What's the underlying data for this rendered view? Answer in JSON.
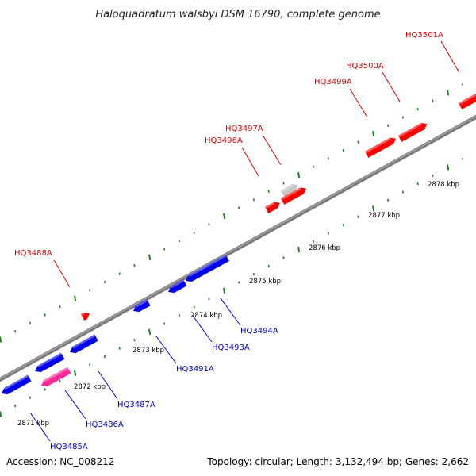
{
  "title": "Haloquadratum walsbyi DSM 16790, complete genome",
  "footer": {
    "accession": "Accession: NC_008212",
    "summary": "Topology: circular; Length: 3,132,494 bp; Genes: 2,662"
  },
  "colors": {
    "forward_gene": "#ff0000",
    "reverse_gene": "#0000ee",
    "highlight_gene": "#ff2a9a",
    "other_gene": "#c8c8c8",
    "forward_label": "#dd0000",
    "reverse_label": "#0000cc",
    "tick": "#208020",
    "backbone": "#7a7a7a"
  },
  "scale_labels": [
    "2871 kbp",
    "2872 kbp",
    "2873 kbp",
    "2874 kbp",
    "2875 kbp",
    "2876 kbp",
    "2877 kbp",
    "2878 kbp"
  ],
  "forward_genes": [
    {
      "label": "HQ3488A",
      "color": "#ff0000"
    },
    {
      "label": "HQ3496A",
      "color": "#ff0000"
    },
    {
      "label": "HQ3497A",
      "color": "#c8c8c8"
    },
    {
      "label": "HQ3499A",
      "color": "#ff0000"
    },
    {
      "label": "HQ3500A",
      "color": "#ff0000"
    },
    {
      "label": "HQ3501A",
      "color": "#ff0000"
    }
  ],
  "reverse_genes": [
    {
      "label": "HQ3485A",
      "color": "#0000ee"
    },
    {
      "label": "HQ3486A",
      "color": "#ff2a9a"
    },
    {
      "label": "HQ3487A",
      "color": "#0000ee"
    },
    {
      "label": "HQ3491A",
      "color": "#0000ee"
    },
    {
      "label": "HQ3493A",
      "color": "#0000ee"
    },
    {
      "label": "HQ3494A",
      "color": "#0000ee"
    }
  ]
}
